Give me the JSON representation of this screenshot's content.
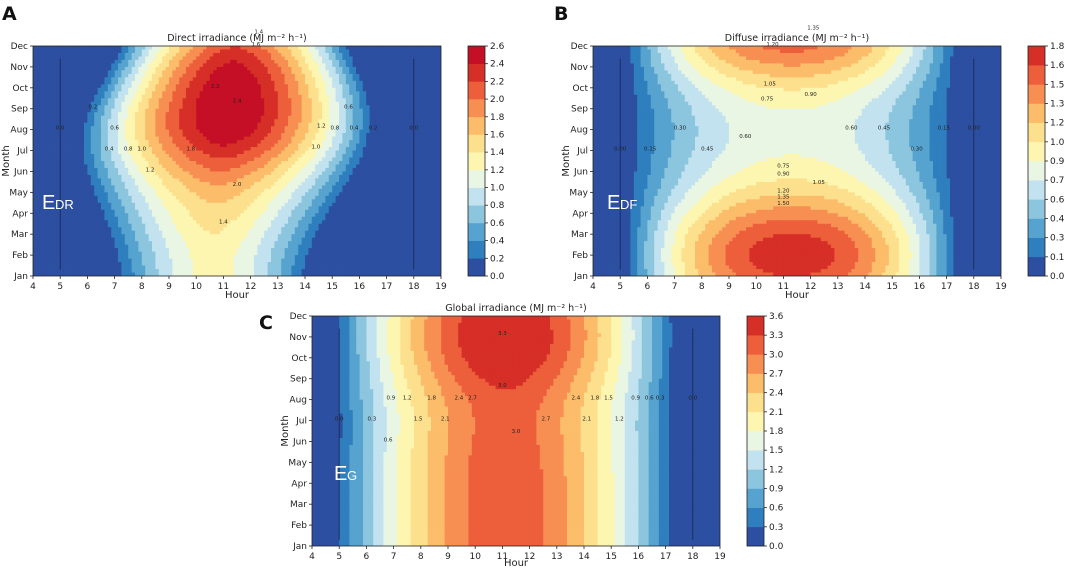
{
  "chart_data": [
    {
      "type": "heatmap",
      "panel": "A",
      "title": "Direct irradiance (MJ m⁻² h⁻¹)",
      "xlabel": "Hour",
      "ylabel": "Month",
      "xlim": [
        4,
        19
      ],
      "x_ticks": [
        "4",
        "5",
        "6",
        "7",
        "8",
        "9",
        "10",
        "11",
        "12",
        "13",
        "14",
        "15",
        "16",
        "17",
        "18",
        "19"
      ],
      "y_ticks": [
        "Jan",
        "Feb",
        "Mar",
        "Apr",
        "May",
        "Jun",
        "Jul",
        "Aug",
        "Sep",
        "Oct",
        "Nov",
        "Dec"
      ],
      "symbol": "E",
      "symbol_sub": "DR",
      "levels": [
        0.0,
        0.2,
        0.4,
        0.6,
        0.8,
        1.0,
        1.2,
        1.4,
        1.6,
        1.8,
        2.0,
        2.2,
        2.4,
        2.6
      ],
      "colorbar_ticks": [
        "0.0",
        "0.2",
        "0.4",
        "0.6",
        "0.8",
        "1.0",
        "1.2",
        "1.4",
        "1.6",
        "1.8",
        "2.0",
        "2.2",
        "2.4",
        "2.6"
      ],
      "mode": "direct",
      "contour_labels": [
        {
          "text": "0.0",
          "hour": 5.0,
          "month": 7
        },
        {
          "text": "0.2",
          "hour": 6.2,
          "month": 8
        },
        {
          "text": "0.6",
          "hour": 7.0,
          "month": 7
        },
        {
          "text": "0.4",
          "hour": 6.8,
          "month": 6
        },
        {
          "text": "0.8",
          "hour": 7.5,
          "month": 6
        },
        {
          "text": "1.0",
          "hour": 8.0,
          "month": 6
        },
        {
          "text": "1.2",
          "hour": 8.3,
          "month": 5
        },
        {
          "text": "1.8",
          "hour": 9.8,
          "month": 6
        },
        {
          "text": "2.2",
          "hour": 10.7,
          "month": 9
        },
        {
          "text": "2.4",
          "hour": 11.5,
          "month": 8.3
        },
        {
          "text": "2.0",
          "hour": 11.5,
          "month": 4.3
        },
        {
          "text": "1.4",
          "hour": 11.0,
          "month": 2.5
        },
        {
          "text": "1.4",
          "hour": 12.3,
          "month": 11.6
        },
        {
          "text": "1.6",
          "hour": 12.2,
          "month": 11
        },
        {
          "text": "1.2",
          "hour": 14.6,
          "month": 7.1
        },
        {
          "text": "1.0",
          "hour": 14.4,
          "month": 6.1
        },
        {
          "text": "0.8",
          "hour": 15.1,
          "month": 7
        },
        {
          "text": "0.6",
          "hour": 15.6,
          "month": 8
        },
        {
          "text": "0.4",
          "hour": 15.8,
          "month": 7
        },
        {
          "text": "0.2",
          "hour": 16.5,
          "month": 7
        },
        {
          "text": "0.0",
          "hour": 18.0,
          "month": 7
        }
      ]
    },
    {
      "type": "heatmap",
      "panel": "B",
      "title": "Diffuse irradiance (MJ m⁻² h⁻¹)",
      "xlabel": "Hour",
      "ylabel": "Month",
      "xlim": [
        4,
        19
      ],
      "x_ticks": [
        "4",
        "5",
        "6",
        "7",
        "8",
        "9",
        "10",
        "11",
        "12",
        "13",
        "14",
        "15",
        "16",
        "17",
        "18",
        "19"
      ],
      "y_ticks": [
        "Jan",
        "Feb",
        "Mar",
        "Apr",
        "May",
        "Jun",
        "Jul",
        "Aug",
        "Sep",
        "Oct",
        "Nov",
        "Dec"
      ],
      "symbol": "E",
      "symbol_sub": "DF",
      "levels": [
        0.0,
        0.15,
        0.3,
        0.45,
        0.6,
        0.75,
        0.9,
        1.05,
        1.2,
        1.35,
        1.5,
        1.65,
        1.8
      ],
      "colorbar_ticks": [
        "0.00",
        "0.15",
        "0.30",
        "0.45",
        "0.60",
        "0.75",
        "0.90",
        "1.05",
        "1.20",
        "1.35",
        "1.50",
        "1.65",
        "1.80"
      ],
      "mode": "diffuse",
      "contour_labels": [
        {
          "text": "0.00",
          "hour": 5.0,
          "month": 6
        },
        {
          "text": "0.15",
          "hour": 6.1,
          "month": 6
        },
        {
          "text": "0.30",
          "hour": 7.2,
          "month": 7
        },
        {
          "text": "0.45",
          "hour": 8.2,
          "month": 6
        },
        {
          "text": "0.60",
          "hour": 9.6,
          "month": 6.6
        },
        {
          "text": "0.75",
          "hour": 10.4,
          "month": 8.4
        },
        {
          "text": "0.90",
          "hour": 12.0,
          "month": 8.6
        },
        {
          "text": "1.05",
          "hour": 10.5,
          "month": 9.1
        },
        {
          "text": "1.20",
          "hour": 10.6,
          "month": 11.0
        },
        {
          "text": "1.35",
          "hour": 12.1,
          "month": 11.8
        },
        {
          "text": "0.75",
          "hour": 11.0,
          "month": 5.2
        },
        {
          "text": "0.90",
          "hour": 11.0,
          "month": 4.8
        },
        {
          "text": "1.05",
          "hour": 12.3,
          "month": 4.4
        },
        {
          "text": "1.20",
          "hour": 11.0,
          "month": 4.0
        },
        {
          "text": "1.35",
          "hour": 11.0,
          "month": 3.7
        },
        {
          "text": "1.50",
          "hour": 11.0,
          "month": 3.4
        },
        {
          "text": "0.60",
          "hour": 13.5,
          "month": 7
        },
        {
          "text": "0.45",
          "hour": 14.7,
          "month": 7
        },
        {
          "text": "0.30",
          "hour": 15.9,
          "month": 6
        },
        {
          "text": "0.15",
          "hour": 16.9,
          "month": 7
        },
        {
          "text": "0.00",
          "hour": 18.0,
          "month": 7
        }
      ]
    },
    {
      "type": "heatmap",
      "panel": "C",
      "title": "Global irradiance (MJ m⁻² h⁻¹)",
      "xlabel": "Hour",
      "ylabel": "Month",
      "xlim": [
        4,
        19
      ],
      "x_ticks": [
        "4",
        "5",
        "6",
        "7",
        "8",
        "9",
        "10",
        "11",
        "12",
        "13",
        "14",
        "15",
        "16",
        "17",
        "18",
        "19"
      ],
      "y_ticks": [
        "Jan",
        "Feb",
        "Mar",
        "Apr",
        "May",
        "Jun",
        "Jul",
        "Aug",
        "Sep",
        "Oct",
        "Nov",
        "Dec"
      ],
      "symbol": "E",
      "symbol_sub": "G",
      "levels": [
        0.0,
        0.3,
        0.6,
        0.9,
        1.2,
        1.5,
        1.8,
        2.1,
        2.4,
        2.7,
        3.0,
        3.3,
        3.6
      ],
      "colorbar_ticks": [
        "0.0",
        "0.3",
        "0.6",
        "0.9",
        "1.2",
        "1.5",
        "1.8",
        "2.1",
        "2.4",
        "2.7",
        "3.0",
        "3.3",
        "3.6"
      ],
      "mode": "global",
      "contour_labels": [
        {
          "text": "0.0",
          "hour": 5.0,
          "month": 6
        },
        {
          "text": "0.3",
          "hour": 6.2,
          "month": 6
        },
        {
          "text": "0.6",
          "hour": 6.8,
          "month": 5
        },
        {
          "text": "0.9",
          "hour": 6.9,
          "month": 7
        },
        {
          "text": "1.2",
          "hour": 7.5,
          "month": 7
        },
        {
          "text": "1.5",
          "hour": 7.9,
          "month": 6
        },
        {
          "text": "1.8",
          "hour": 8.4,
          "month": 7
        },
        {
          "text": "2.1",
          "hour": 8.9,
          "month": 6
        },
        {
          "text": "2.4",
          "hour": 9.4,
          "month": 7
        },
        {
          "text": "2.7",
          "hour": 9.9,
          "month": 7
        },
        {
          "text": "3.0",
          "hour": 11.0,
          "month": 7.6
        },
        {
          "text": "3.3",
          "hour": 11.0,
          "month": 10.1
        },
        {
          "text": "3.0",
          "hour": 11.5,
          "month": 5.4
        },
        {
          "text": "2.7",
          "hour": 12.6,
          "month": 6
        },
        {
          "text": "2.4",
          "hour": 13.7,
          "month": 7
        },
        {
          "text": "2.1",
          "hour": 14.1,
          "month": 6
        },
        {
          "text": "1.8",
          "hour": 14.4,
          "month": 7
        },
        {
          "text": "1.5",
          "hour": 14.9,
          "month": 7
        },
        {
          "text": "1.2",
          "hour": 15.3,
          "month": 6
        },
        {
          "text": "0.9",
          "hour": 15.9,
          "month": 7
        },
        {
          "text": "0.6",
          "hour": 16.4,
          "month": 7
        },
        {
          "text": "0.3",
          "hour": 16.8,
          "month": 7
        },
        {
          "text": "0.0",
          "hour": 18.0,
          "month": 7
        }
      ]
    }
  ]
}
